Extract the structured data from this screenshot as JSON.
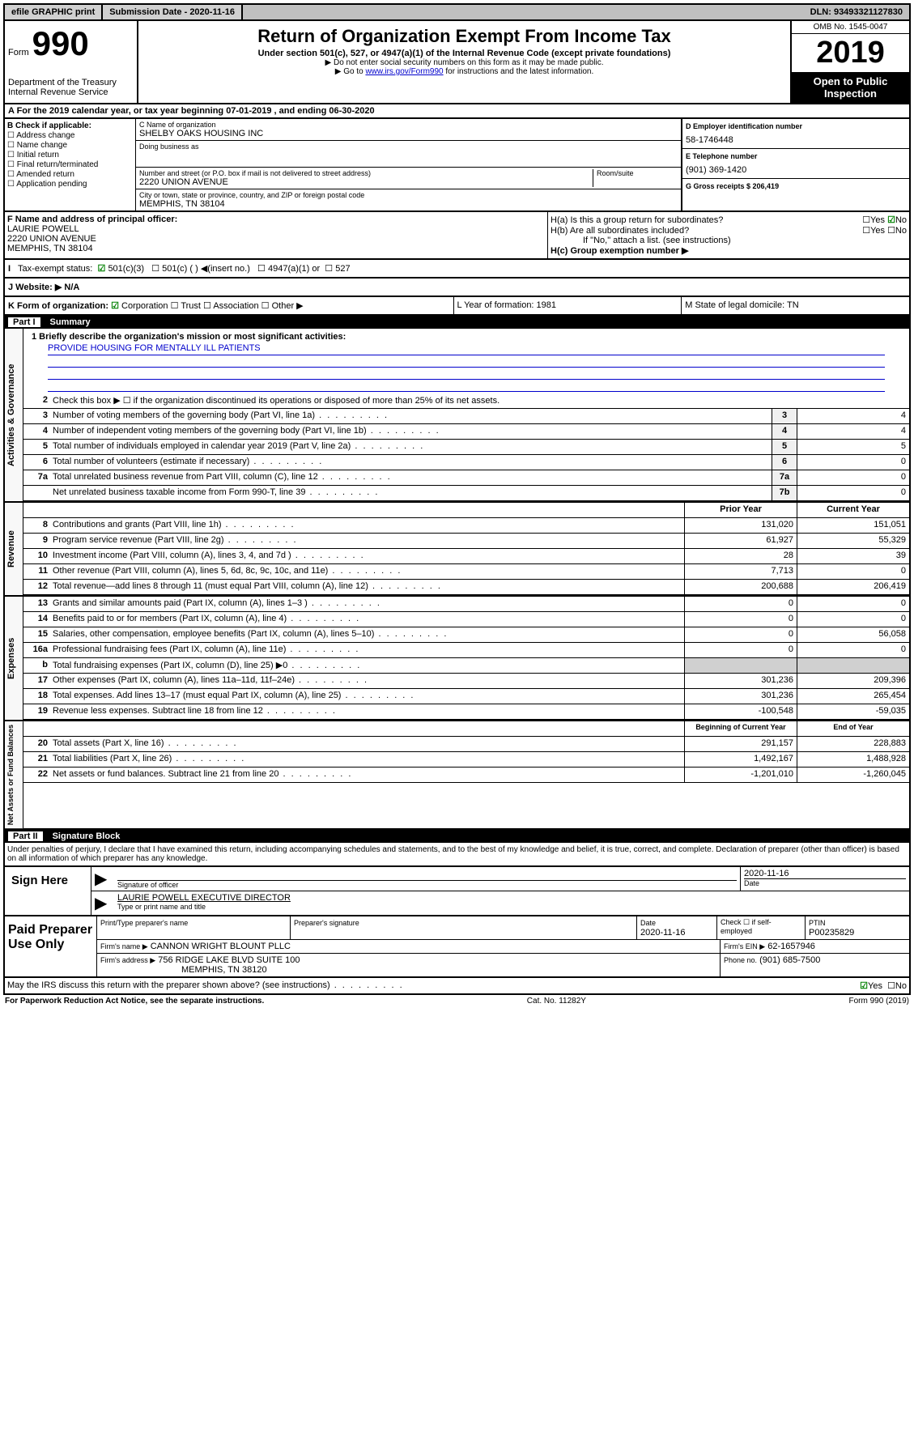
{
  "topbar": {
    "efile": "efile GRAPHIC print",
    "sub_label": "Submission Date - 2020-11-16",
    "dln": "DLN: 93493321127830"
  },
  "header": {
    "form_word": "Form",
    "form_num": "990",
    "dept": "Department of the Treasury",
    "irs": "Internal Revenue Service",
    "title": "Return of Organization Exempt From Income Tax",
    "sub1": "Under section 501(c), 527, or 4947(a)(1) of the Internal Revenue Code (except private foundations)",
    "sub2": "▶ Do not enter social security numbers on this form as it may be made public.",
    "sub3_pre": "▶ Go to ",
    "sub3_link": "www.irs.gov/Form990",
    "sub3_post": " for instructions and the latest information.",
    "omb": "OMB No. 1545-0047",
    "year": "2019",
    "open": "Open to Public Inspection"
  },
  "row_a": "A For the 2019 calendar year, or tax year beginning 07-01-2019    , and ending 06-30-2020",
  "col_b": {
    "title": "B Check if applicable:",
    "opts": [
      "Address change",
      "Name change",
      "Initial return",
      "Final return/terminated",
      "Amended return",
      "Application pending"
    ]
  },
  "col_c": {
    "name_label": "C Name of organization",
    "name": "SHELBY OAKS HOUSING INC",
    "dba_label": "Doing business as",
    "addr_label": "Number and street (or P.O. box if mail is not delivered to street address)",
    "room_label": "Room/suite",
    "addr": "2220 UNION AVENUE",
    "city_label": "City or town, state or province, country, and ZIP or foreign postal code",
    "city": "MEMPHIS, TN  38104"
  },
  "col_d": {
    "ein_label": "D Employer identification number",
    "ein": "58-1746448",
    "tel_label": "E Telephone number",
    "tel": "(901) 369-1420",
    "gross_label": "G Gross receipts $ 206,419"
  },
  "col_f": {
    "label": "F  Name and address of principal officer:",
    "name": "LAURIE POWELL",
    "addr": "2220 UNION AVENUE",
    "city": "MEMPHIS, TN  38104"
  },
  "col_h": {
    "ha": "H(a)  Is this a group return for subordinates?",
    "hb": "H(b)  Are all subordinates included?",
    "hb_note": "If \"No,\" attach a list. (see instructions)",
    "hc": "H(c)  Group exemption number ▶"
  },
  "tax_status": {
    "label": "Tax-exempt status:",
    "opts": [
      "501(c)(3)",
      "501(c) (  ) ◀(insert no.)",
      "4947(a)(1) or",
      "527"
    ]
  },
  "website": "J   Website: ▶  N/A",
  "row_k": {
    "k": "K Form of organization:",
    "corp": "Corporation",
    "trust": "Trust",
    "assoc": "Association",
    "other": "Other ▶",
    "l": "L Year of formation: 1981",
    "m": "M State of legal domicile: TN"
  },
  "part1": {
    "num": "Part I",
    "title": "Summary"
  },
  "summary": {
    "gov_label": "Activities & Governance",
    "rev_label": "Revenue",
    "exp_label": "Expenses",
    "net_label": "Net Assets or Fund Balances",
    "q1": "1  Briefly describe the organization's mission or most significant activities:",
    "mission": "PROVIDE HOUSING FOR MENTALLY ILL PATIENTS",
    "q2": "Check this box ▶ ☐  if the organization discontinued its operations or disposed of more than 25% of its net assets.",
    "rows_gov": [
      {
        "n": "3",
        "d": "Number of voting members of the governing body (Part VI, line 1a)",
        "b": "3",
        "v": "4"
      },
      {
        "n": "4",
        "d": "Number of independent voting members of the governing body (Part VI, line 1b)",
        "b": "4",
        "v": "4"
      },
      {
        "n": "5",
        "d": "Total number of individuals employed in calendar year 2019 (Part V, line 2a)",
        "b": "5",
        "v": "5"
      },
      {
        "n": "6",
        "d": "Total number of volunteers (estimate if necessary)",
        "b": "6",
        "v": "0"
      },
      {
        "n": "7a",
        "d": "Total unrelated business revenue from Part VIII, column (C), line 12",
        "b": "7a",
        "v": "0"
      },
      {
        "n": "",
        "d": "Net unrelated business taxable income from Form 990-T, line 39",
        "b": "7b",
        "v": "0"
      }
    ],
    "year_header": {
      "prior": "Prior Year",
      "curr": "Current Year"
    },
    "rows_rev": [
      {
        "n": "8",
        "d": "Contributions and grants (Part VIII, line 1h)",
        "p": "131,020",
        "c": "151,051"
      },
      {
        "n": "9",
        "d": "Program service revenue (Part VIII, line 2g)",
        "p": "61,927",
        "c": "55,329"
      },
      {
        "n": "10",
        "d": "Investment income (Part VIII, column (A), lines 3, 4, and 7d )",
        "p": "28",
        "c": "39"
      },
      {
        "n": "11",
        "d": "Other revenue (Part VIII, column (A), lines 5, 6d, 8c, 9c, 10c, and 11e)",
        "p": "7,713",
        "c": "0"
      },
      {
        "n": "12",
        "d": "Total revenue—add lines 8 through 11 (must equal Part VIII, column (A), line 12)",
        "p": "200,688",
        "c": "206,419"
      }
    ],
    "rows_exp": [
      {
        "n": "13",
        "d": "Grants and similar amounts paid (Part IX, column (A), lines 1–3 )",
        "p": "0",
        "c": "0"
      },
      {
        "n": "14",
        "d": "Benefits paid to or for members (Part IX, column (A), line 4)",
        "p": "0",
        "c": "0"
      },
      {
        "n": "15",
        "d": "Salaries, other compensation, employee benefits (Part IX, column (A), lines 5–10)",
        "p": "0",
        "c": "56,058"
      },
      {
        "n": "16a",
        "d": "Professional fundraising fees (Part IX, column (A), line 11e)",
        "p": "0",
        "c": "0"
      },
      {
        "n": "b",
        "d": "Total fundraising expenses (Part IX, column (D), line 25) ▶0",
        "p": "",
        "c": "",
        "gray": true
      },
      {
        "n": "17",
        "d": "Other expenses (Part IX, column (A), lines 11a–11d, 11f–24e)",
        "p": "301,236",
        "c": "209,396"
      },
      {
        "n": "18",
        "d": "Total expenses. Add lines 13–17 (must equal Part IX, column (A), line 25)",
        "p": "301,236",
        "c": "265,454"
      },
      {
        "n": "19",
        "d": "Revenue less expenses. Subtract line 18 from line 12",
        "p": "-100,548",
        "c": "-59,035"
      }
    ],
    "net_header": {
      "prior": "Beginning of Current Year",
      "curr": "End of Year"
    },
    "rows_net": [
      {
        "n": "20",
        "d": "Total assets (Part X, line 16)",
        "p": "291,157",
        "c": "228,883"
      },
      {
        "n": "21",
        "d": "Total liabilities (Part X, line 26)",
        "p": "1,492,167",
        "c": "1,488,928"
      },
      {
        "n": "22",
        "d": "Net assets or fund balances. Subtract line 21 from line 20",
        "p": "-1,201,010",
        "c": "-1,260,045"
      }
    ]
  },
  "part2": {
    "num": "Part II",
    "title": "Signature Block"
  },
  "perjury": "Under penalties of perjury, I declare that I have examined this return, including accompanying schedules and statements, and to the best of my knowledge and belief, it is true, correct, and complete. Declaration of preparer (other than officer) is based on all information of which preparer has any knowledge.",
  "sign": {
    "here": "Sign Here",
    "sig_label": "Signature of officer",
    "date": "2020-11-16",
    "date_label": "Date",
    "name": "LAURIE POWELL  EXECUTIVE DIRECTOR",
    "name_label": "Type or print name and title"
  },
  "paid": {
    "label": "Paid Preparer Use Only",
    "h1": "Print/Type preparer's name",
    "h2": "Preparer's signature",
    "h3": "Date",
    "date": "2020-11-16",
    "h4": "Check ☐ if self-employed",
    "h5": "PTIN",
    "ptin": "P00235829",
    "firm_label": "Firm's name    ▶",
    "firm": "CANNON WRIGHT BLOUNT PLLC",
    "ein_label": "Firm's EIN ▶",
    "ein": "62-1657946",
    "addr_label": "Firm's address ▶",
    "addr": "756 RIDGE LAKE BLVD SUITE 100",
    "city": "MEMPHIS, TN  38120",
    "phone_label": "Phone no.",
    "phone": "(901) 685-7500"
  },
  "discuss": "May the IRS discuss this return with the preparer shown above? (see instructions)",
  "footer": {
    "left": "For Paperwork Reduction Act Notice, see the separate instructions.",
    "mid": "Cat. No. 11282Y",
    "right": "Form 990 (2019)"
  }
}
